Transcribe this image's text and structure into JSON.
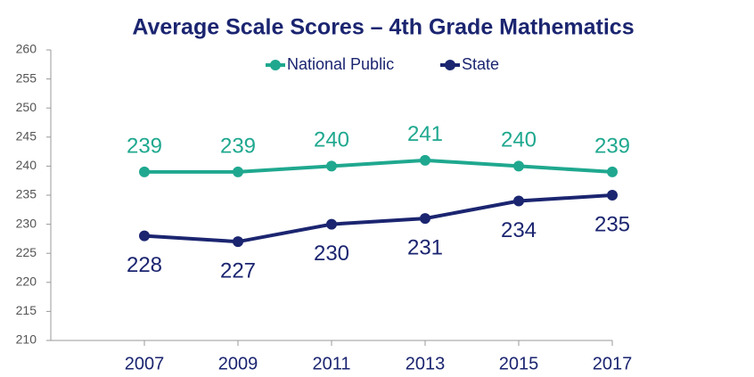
{
  "chart_data": {
    "type": "line",
    "title": "Average Scale Scores – 4th Grade Mathematics",
    "categories": [
      "2007",
      "2009",
      "2011",
      "2013",
      "2015",
      "2017"
    ],
    "series": [
      {
        "name": "National Public",
        "color": "#1fa88f",
        "values": [
          239,
          239,
          240,
          241,
          240,
          239
        ]
      },
      {
        "name": "State",
        "color": "#1b2570",
        "values": [
          228,
          227,
          230,
          231,
          234,
          235
        ]
      }
    ],
    "ylim": [
      210,
      260
    ],
    "yticks": [
      210,
      215,
      220,
      225,
      230,
      235,
      240,
      245,
      250,
      255,
      260
    ],
    "legend": "top"
  }
}
